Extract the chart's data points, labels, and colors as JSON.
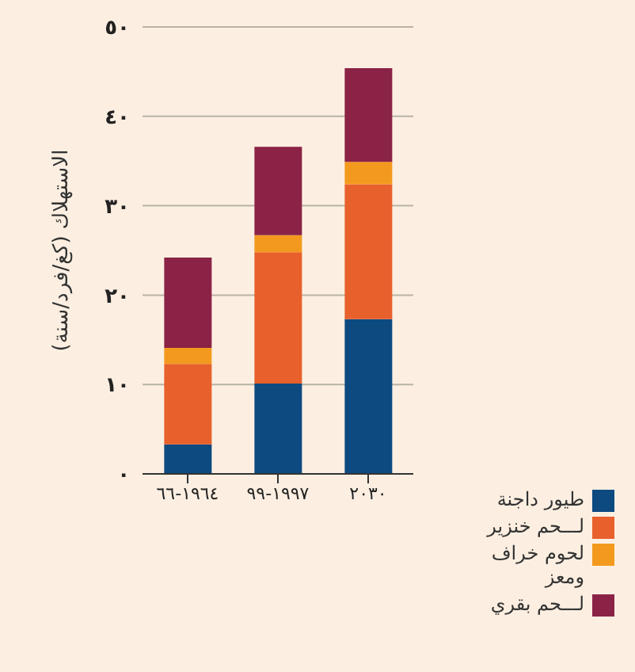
{
  "chart_data": {
    "type": "bar",
    "stacked": true,
    "ylabel": "الاستهلاك (كغ/فرد/سنة)",
    "categories": [
      "١٩٦٤-٦٦",
      "١٩٩٧-٩٩",
      "٢٠٣٠"
    ],
    "series": [
      {
        "name": "طيور داجنة",
        "color": "#0d4a80",
        "values": [
          3.3,
          10.1,
          17.3
        ]
      },
      {
        "name": "لـــحم خنزير",
        "color": "#e8602c",
        "values": [
          9.0,
          14.7,
          15.1
        ]
      },
      {
        "name": "لحوم خراف ومعز",
        "color": "#f39a1e",
        "values": [
          1.8,
          1.9,
          2.5
        ]
      },
      {
        "name": "لـــحم بقري",
        "color": "#8b2346",
        "values": [
          10.1,
          9.9,
          10.5
        ]
      }
    ],
    "ylim": [
      0,
      50
    ],
    "yticks": [
      {
        "value": 0,
        "label": "٠"
      },
      {
        "value": 10,
        "label": "١٠"
      },
      {
        "value": 20,
        "label": "٢٠"
      },
      {
        "value": 30,
        "label": "٣٠"
      },
      {
        "value": 40,
        "label": "٤٠"
      },
      {
        "value": 50,
        "label": "٥٠"
      }
    ],
    "grid": "y",
    "legend": "bottom right"
  }
}
